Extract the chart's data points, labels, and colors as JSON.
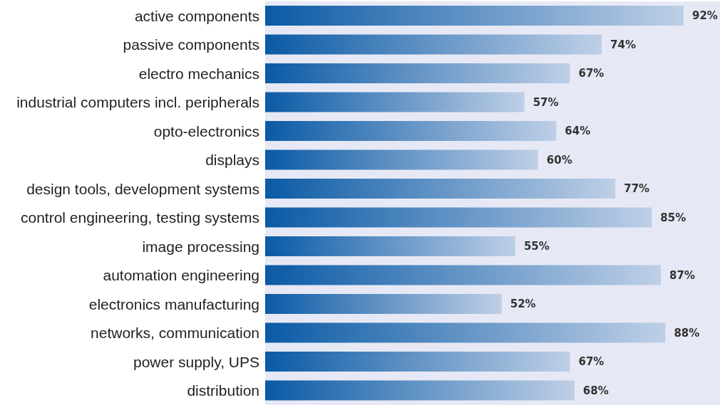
{
  "chart_data": {
    "type": "bar",
    "orientation": "horizontal",
    "categories": [
      "active components",
      "passive components",
      "electro mechanics",
      "industrial computers incl. peripherals",
      "opto-electronics",
      "displays",
      "design tools, development systems",
      "control engineering, testing systems",
      "image processing",
      "automation engineering",
      "electronics manufacturing",
      "networks, communication",
      "power supply, UPS",
      "distribution"
    ],
    "values": [
      92,
      74,
      67,
      57,
      64,
      60,
      77,
      85,
      55,
      87,
      52,
      88,
      67,
      68
    ],
    "color": "#0a5aa5",
    "xlim": [
      0,
      100
    ],
    "value_labels": [
      "92%",
      "74%",
      "67%",
      "57%",
      "64%",
      "60%",
      "77%",
      "85%",
      "55%",
      "87%",
      "52%",
      "88%",
      "67%",
      "68%"
    ],
    "tick_labels": "y",
    "grid": false
  }
}
